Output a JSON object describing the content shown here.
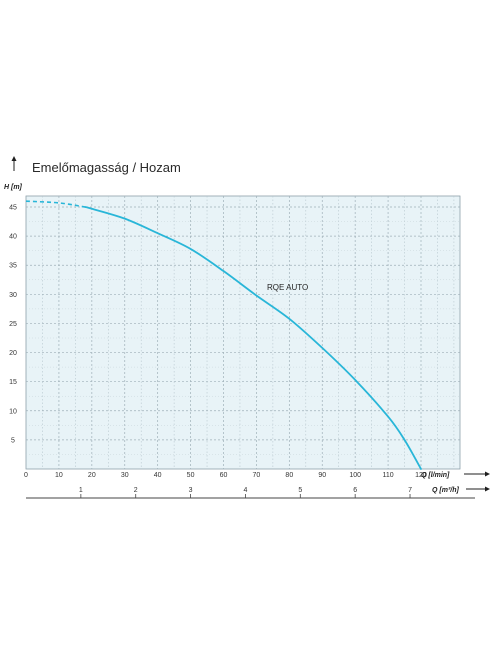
{
  "chart_data": {
    "type": "line",
    "title": "Emelőmagasság / Hozam",
    "ylabel": "H [m]",
    "xlabel": "Q [l/min]",
    "x2label": "Q [m³/h]",
    "xlim": [
      0,
      120
    ],
    "ylim": [
      0,
      50
    ],
    "x_ticks": [
      "0",
      "10",
      "20",
      "30",
      "40",
      "50",
      "60",
      "70",
      "80",
      "90",
      "100",
      "110",
      "120"
    ],
    "y_ticks": [
      "5",
      "10",
      "15",
      "20",
      "25",
      "30",
      "35",
      "40",
      "45"
    ],
    "x2_ticks": [
      "1",
      "2",
      "3",
      "4",
      "5",
      "6",
      "7"
    ],
    "grid": true,
    "series": [
      {
        "name": "RQE AUTO",
        "color": "#29b6d8",
        "dashed_until_x": 18,
        "x": [
          0,
          10,
          18,
          20,
          30,
          40,
          50,
          60,
          70,
          80,
          90,
          100,
          110,
          115,
          120
        ],
        "y": [
          46,
          45.7,
          45,
          44.7,
          43,
          40.5,
          37.8,
          34,
          29.8,
          25.8,
          20.8,
          15.3,
          9,
          5,
          0
        ]
      }
    ]
  }
}
